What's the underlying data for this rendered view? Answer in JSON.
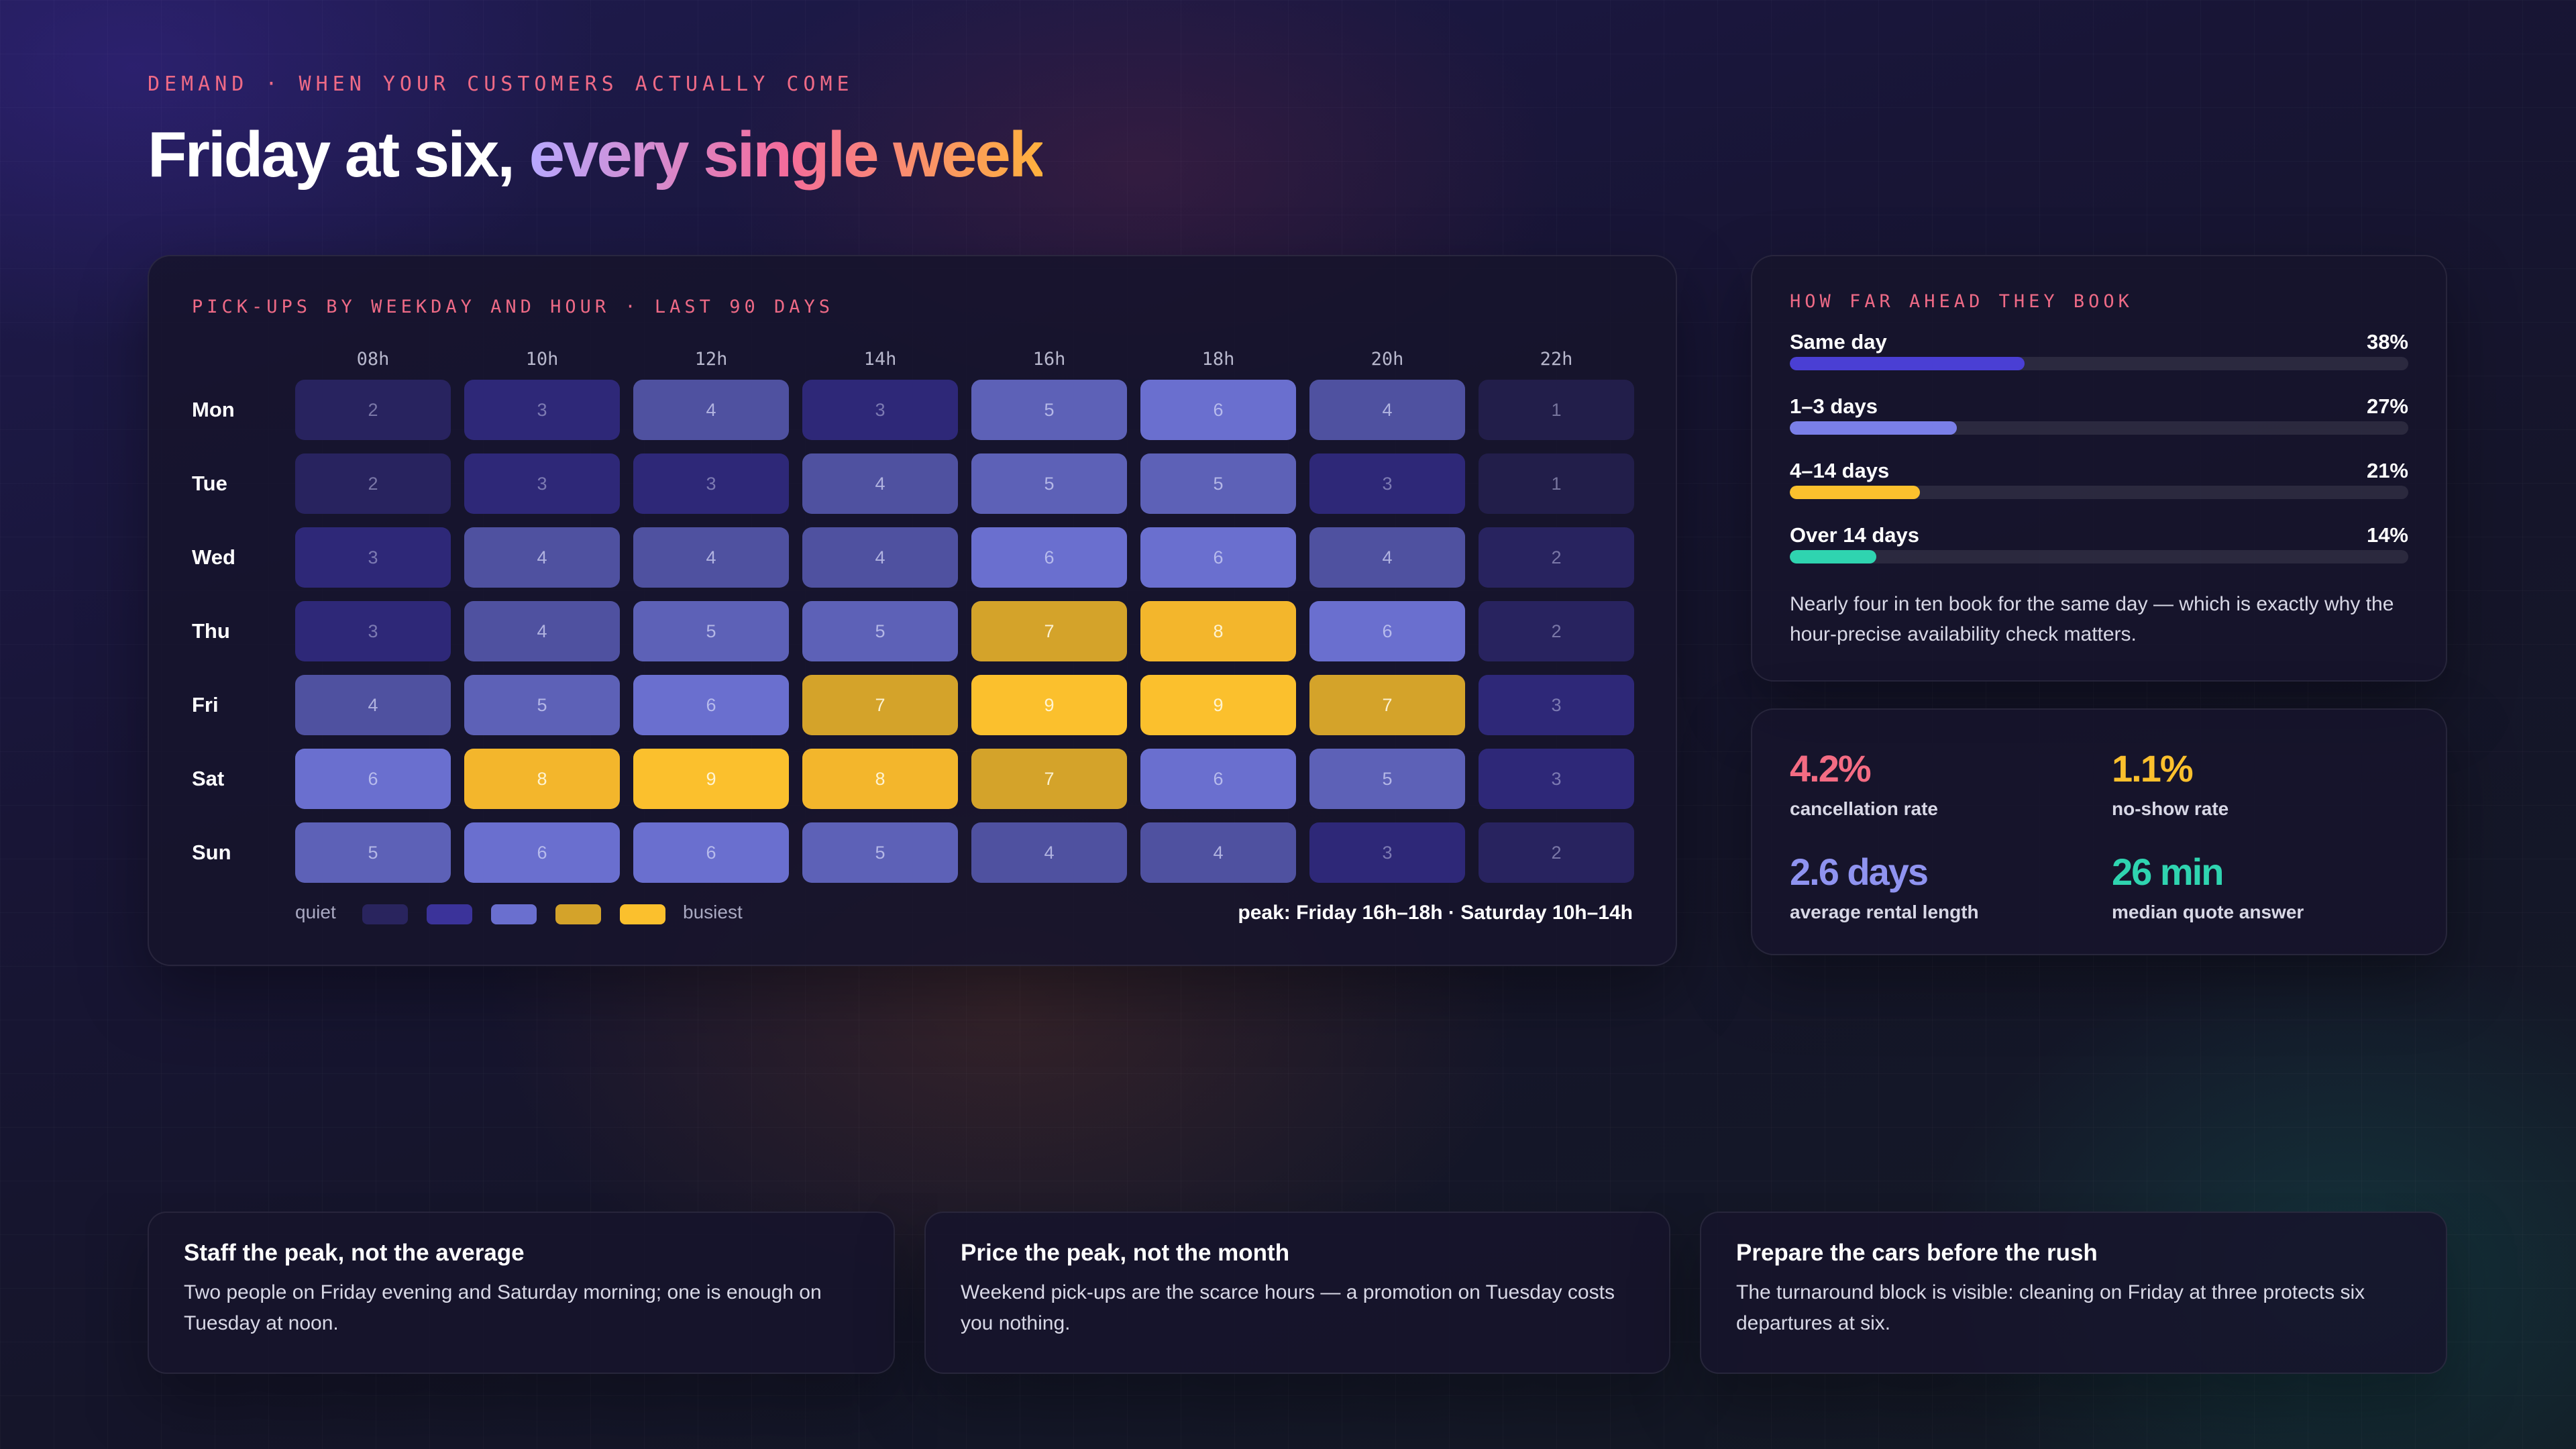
{
  "header": {
    "eyebrow": "DEMAND · WHEN YOUR CUSTOMERS ACTUALLY COME",
    "headline_plain": "Friday at six, ",
    "headline_gradient": "every single week"
  },
  "heatmap": {
    "title": "PICK-UPS BY WEEKDAY AND HOUR · LAST 90 DAYS",
    "hours": [
      "08h",
      "10h",
      "12h",
      "14h",
      "16h",
      "18h",
      "20h",
      "22h"
    ],
    "rows": [
      {
        "day": "Mon",
        "values": [
          2,
          3,
          4,
          3,
          5,
          6,
          4,
          1
        ]
      },
      {
        "day": "Tue",
        "values": [
          2,
          3,
          3,
          4,
          5,
          5,
          3,
          1
        ]
      },
      {
        "day": "Wed",
        "values": [
          3,
          4,
          4,
          4,
          6,
          6,
          4,
          2
        ]
      },
      {
        "day": "Thu",
        "values": [
          3,
          4,
          5,
          5,
          7,
          8,
          6,
          2
        ]
      },
      {
        "day": "Fri",
        "values": [
          4,
          5,
          6,
          7,
          9,
          9,
          7,
          3
        ]
      },
      {
        "day": "Sat",
        "values": [
          6,
          8,
          9,
          8,
          7,
          6,
          5,
          3
        ]
      },
      {
        "day": "Sun",
        "values": [
          5,
          6,
          6,
          5,
          4,
          4,
          3,
          2
        ]
      }
    ],
    "legend_low": "quiet",
    "legend_high": "busiest",
    "legend_colors": [
      "#29245e",
      "#3b339a",
      "#6a6fcf",
      "#d4a32a",
      "#fbc02d"
    ],
    "peak_note": "peak: Friday 16h–18h · Saturday 10h–14h",
    "colors": {
      "1": "#221e4a",
      "2": "#28235f",
      "3": "#2e2878",
      "4": "#4f51a0",
      "5": "#5d61b7",
      "6": "#6a6fcf",
      "7": "#d4a32a",
      "8": "#f3b62c",
      "9": "#fbc02d"
    }
  },
  "booking": {
    "title": "HOW FAR AHEAD THEY BOOK",
    "items": [
      {
        "label": "Same day",
        "pct_text": "38%",
        "value": 0.38,
        "color": "#4a3fd4"
      },
      {
        "label": "1–3 days",
        "pct_text": "27%",
        "value": 0.27,
        "color": "#7a7fe8"
      },
      {
        "label": "4–14 days",
        "pct_text": "21%",
        "value": 0.21,
        "color": "#fbc02d"
      },
      {
        "label": "Over 14 days",
        "pct_text": "14%",
        "value": 0.14,
        "color": "#2fd4b0"
      }
    ],
    "note": "Nearly four in ten book for the same day — which is exactly why the hour-precise availability check matters."
  },
  "stats": [
    {
      "value": "4.2%",
      "label": "cancellation rate",
      "color": "#f46c83"
    },
    {
      "value": "1.1%",
      "label": "no-show rate",
      "color": "#fbc02d"
    },
    {
      "value": "2.6 days",
      "label": "average rental length",
      "color": "#8f93f0"
    },
    {
      "value": "26 min",
      "label": "median quote answer",
      "color": "#2fd4b0"
    }
  ],
  "tips": [
    {
      "title": "Staff the peak, not the average",
      "body": "Two people on Friday evening and Saturday morning; one is enough on Tuesday at noon."
    },
    {
      "title": "Price the peak, not the month",
      "body": "Weekend pick-ups are the scarce hours — a promotion on Tuesday costs you nothing."
    },
    {
      "title": "Prepare the cars before the rush",
      "body": "The turnaround block is visible: cleaning on Friday at three protects six departures at six."
    }
  ]
}
